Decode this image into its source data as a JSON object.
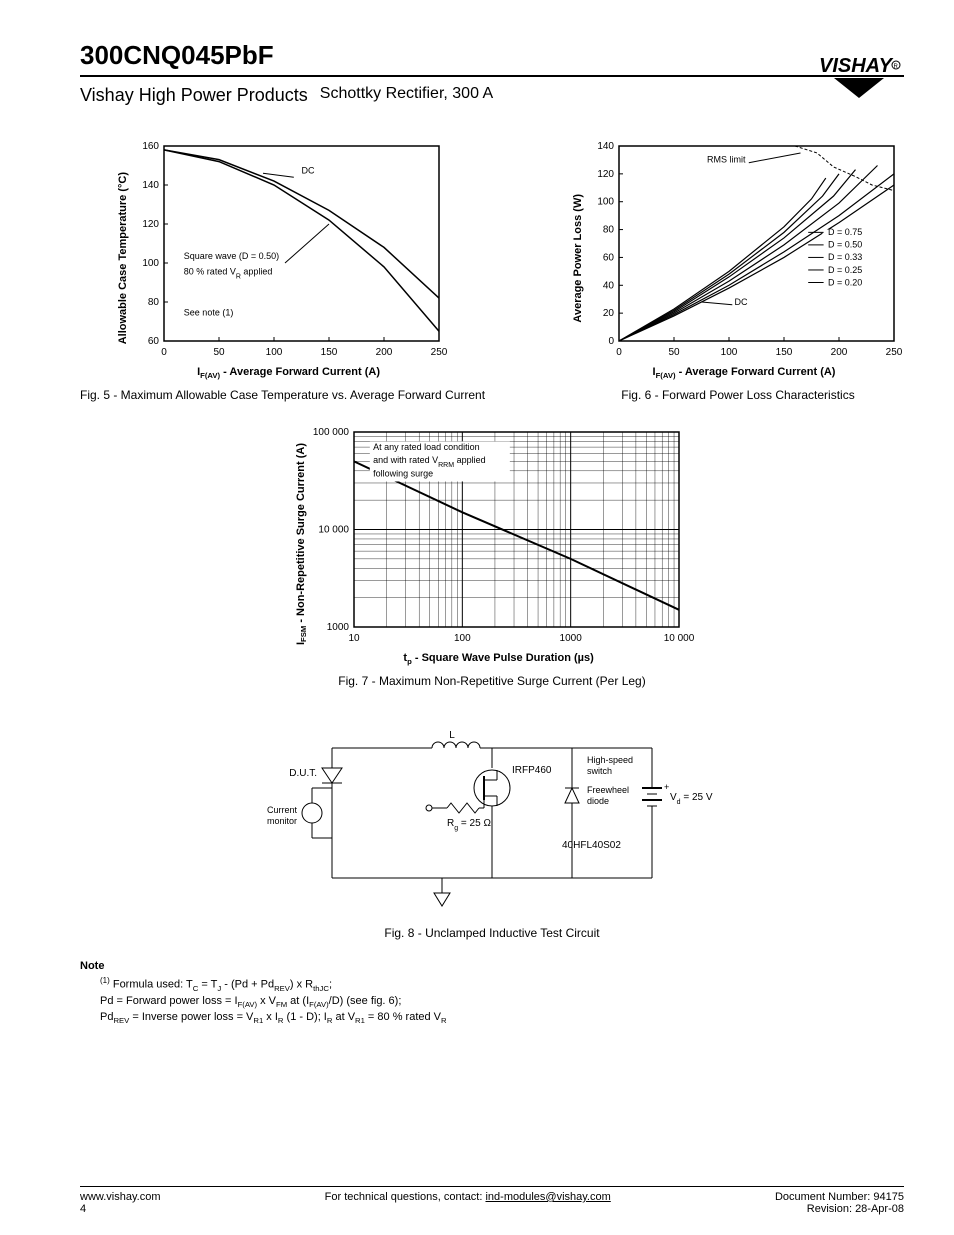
{
  "header": {
    "part_number": "300CNQ045PbF",
    "brand_left": "Vishay High Power Products",
    "brand_right": "Schottky Rectifier, 300 A",
    "logo_text": "VISHAY"
  },
  "fig5": {
    "caption": "Fig. 5 - Maximum Allowable Case Temperature vs. Average Forward Current",
    "xlabel_html": "I<sub>F(AV)</sub> - Average Forward Current (A)",
    "ylabel": "Allowable Case Temperature (°C)",
    "xlim": [
      0,
      250
    ],
    "ylim": [
      60,
      160
    ],
    "xticks": [
      0,
      50,
      100,
      150,
      200,
      250
    ],
    "yticks": [
      60,
      80,
      100,
      120,
      140,
      160
    ],
    "annot1": "DC",
    "annot2_l1": "Square wave (D = 0.50)",
    "annot2_l2": "80 % rated V",
    "annot2_l2_sub": "R",
    "annot2_l2_tail": " applied",
    "annot3": "See note (1)",
    "curve_dc": [
      [
        0,
        158
      ],
      [
        50,
        153
      ],
      [
        100,
        142
      ],
      [
        150,
        127
      ],
      [
        200,
        108
      ],
      [
        250,
        82
      ]
    ],
    "curve_sq": [
      [
        0,
        158
      ],
      [
        50,
        152
      ],
      [
        100,
        140
      ],
      [
        150,
        122
      ],
      [
        200,
        98
      ],
      [
        250,
        65
      ]
    ]
  },
  "fig6": {
    "caption": "Fig. 6 - Forward Power Loss Characteristics",
    "xlabel_html": "I<sub>F(AV)</sub> - Average Forward Current (A)",
    "ylabel": "Average Power Loss (W)",
    "xlim": [
      0,
      250
    ],
    "ylim": [
      0,
      140
    ],
    "xticks": [
      0,
      50,
      100,
      150,
      200,
      250
    ],
    "yticks": [
      0,
      20,
      40,
      60,
      80,
      100,
      120,
      140
    ],
    "annot_rms": "RMS limit",
    "annot_dc": "DC",
    "legend": [
      "D = 0.75",
      "D = 0.50",
      "D = 0.33",
      "D = 0.25",
      "D = 0.20"
    ],
    "curve_dc": [
      [
        0,
        0
      ],
      [
        50,
        18
      ],
      [
        100,
        38
      ],
      [
        150,
        60
      ],
      [
        200,
        85
      ],
      [
        250,
        112
      ]
    ],
    "curve_d075": [
      [
        0,
        0
      ],
      [
        50,
        19
      ],
      [
        100,
        40
      ],
      [
        150,
        64
      ],
      [
        200,
        90
      ],
      [
        250,
        120
      ]
    ],
    "curve_d050": [
      [
        0,
        0
      ],
      [
        50,
        20
      ],
      [
        100,
        43
      ],
      [
        150,
        69
      ],
      [
        200,
        99
      ],
      [
        235,
        126
      ]
    ],
    "curve_d033": [
      [
        0,
        0
      ],
      [
        50,
        21
      ],
      [
        100,
        46
      ],
      [
        150,
        74
      ],
      [
        195,
        104
      ],
      [
        215,
        123
      ]
    ],
    "curve_d025": [
      [
        0,
        0
      ],
      [
        50,
        22
      ],
      [
        100,
        48
      ],
      [
        150,
        78
      ],
      [
        185,
        104
      ],
      [
        200,
        120
      ]
    ],
    "curve_d020": [
      [
        0,
        0
      ],
      [
        50,
        23
      ],
      [
        100,
        50
      ],
      [
        150,
        82
      ],
      [
        175,
        102
      ],
      [
        188,
        117
      ]
    ],
    "rms_limits": [
      [
        160,
        140
      ],
      [
        180,
        135
      ],
      [
        195,
        125
      ],
      [
        215,
        118
      ],
      [
        230,
        112
      ],
      [
        250,
        108
      ]
    ]
  },
  "fig7": {
    "caption": "Fig. 7 - Maximum Non-Repetitive Surge Current (Per Leg)",
    "xlabel_html": "t<sub>p</sub> - Square Wave Pulse Duration (µs)",
    "ylabel_html": "I<sub>FSM</sub> - Non-Repetitive Surge Current (A)",
    "xticks": [
      "10",
      "100",
      "1000",
      "10 000"
    ],
    "yticks": [
      "1000",
      "10 000",
      "100 000"
    ],
    "annot_l1": "At any rated load condition",
    "annot_l2": "and with rated V",
    "annot_l2_sub": "RRM",
    "annot_l2_tail": " applied",
    "annot_l3": "following surge",
    "curve": [
      [
        10,
        50000
      ],
      [
        100,
        15000
      ],
      [
        1000,
        5000
      ],
      [
        10000,
        1500
      ]
    ]
  },
  "fig8": {
    "caption": "Fig. 8 - Unclamped Inductive Test Circuit",
    "labels": {
      "L": "L",
      "dut": "D.U.T.",
      "irfp": "IRFP460",
      "rg": "R",
      "rg_sub": "g",
      "rg_val": " = 25 Ω",
      "hispeed": "High-speed switch",
      "freewheel": "Freewheel diode",
      "hfl": "40HFL40S02",
      "vd": "V",
      "vd_sub": "d",
      "vd_val": " = 25 V",
      "monitor": "Current monitor"
    }
  },
  "notes": {
    "head": "Note",
    "sup": "(1)",
    "l1_a": "Formula used: T",
    "l1_b": " - (Pd + Pd",
    "l1_c": ") x R",
    "l1_d": ";",
    "l2_a": "Pd = Forward power loss = I",
    "l2_b": " x V",
    "l2_c": " at (I",
    "l2_d": "/D) (see fig. 6);",
    "l3_a": "Pd",
    "l3_b": " = Inverse power loss = V",
    "l3_c": " x I",
    "l3_d": " (1 - D); I",
    "l3_e": " at V",
    "l3_f": " = 80 % rated V",
    "sub_c": "C",
    "sub_j": "J",
    "sub_rev": "REV",
    "sub_thjc": "thJC",
    "sub_fav": "F(AV)",
    "sub_fm": "FM",
    "sub_r1": "R1",
    "sub_r": "R",
    "eq": " = T"
  },
  "footer": {
    "url": "www.vishay.com",
    "page": "4",
    "mid_a": "For technical questions, contact: ",
    "mid_email": "ind-modules@vishay.com",
    "doc": "Document Number: 94175",
    "rev": "Revision: 28-Apr-08"
  },
  "colors": {
    "line": "#000000",
    "bg": "#ffffff"
  }
}
